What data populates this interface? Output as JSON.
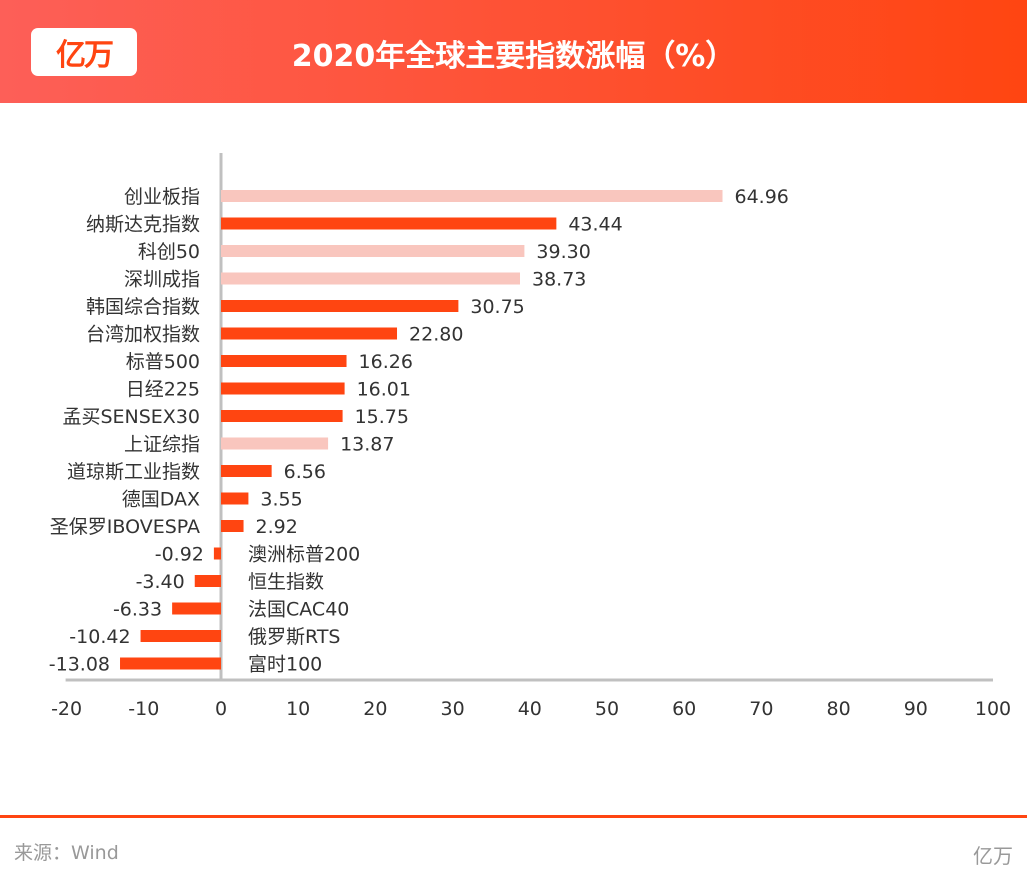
{
  "header": {
    "logo": "亿万",
    "title": "2020年全球主要指数涨幅（%）"
  },
  "footer": {
    "source": "来源：Wind",
    "brand": "亿万"
  },
  "colors": {
    "domestic": "#f9c6be",
    "foreign": "#ff4511",
    "axis": "#c0c0c0",
    "text": "#333333"
  },
  "chart_data": {
    "type": "bar",
    "orientation": "horizontal",
    "title": "2020年全球主要指数涨幅（%）",
    "xlim": [
      -20,
      100
    ],
    "xticks": [
      -20,
      -10,
      0,
      10,
      20,
      30,
      40,
      50,
      60,
      70,
      80,
      90,
      100
    ],
    "grid": false,
    "categories": [
      "创业板指",
      "纳斯达克指数",
      "科创50",
      "深圳成指",
      "韩国综合指数",
      "台湾加权指数",
      "标普500",
      "日经225",
      "孟买SENSEX30",
      "上证综指",
      "道琼斯工业指数",
      "德国DAX",
      "圣保罗IBOVESPA",
      "澳洲标普200",
      "恒生指数",
      "法国CAC40",
      "俄罗斯RTS",
      "富时100"
    ],
    "values": [
      64.96,
      43.44,
      39.3,
      38.73,
      30.75,
      22.8,
      16.26,
      16.01,
      15.75,
      13.87,
      6.56,
      3.55,
      2.92,
      -0.92,
      -3.4,
      -6.33,
      -10.42,
      -13.08
    ],
    "labels": [
      "64.96",
      "43.44",
      "39.30",
      "38.73",
      "30.75",
      "22.80",
      "16.26",
      "16.01",
      "15.75",
      "13.87",
      "6.56",
      "3.55",
      "2.92",
      "-0.92",
      "-3.40",
      "-6.33",
      "-10.42",
      "-13.08"
    ],
    "domestic": [
      true,
      false,
      true,
      true,
      false,
      false,
      false,
      false,
      false,
      true,
      false,
      false,
      false,
      false,
      false,
      false,
      false,
      false
    ]
  }
}
